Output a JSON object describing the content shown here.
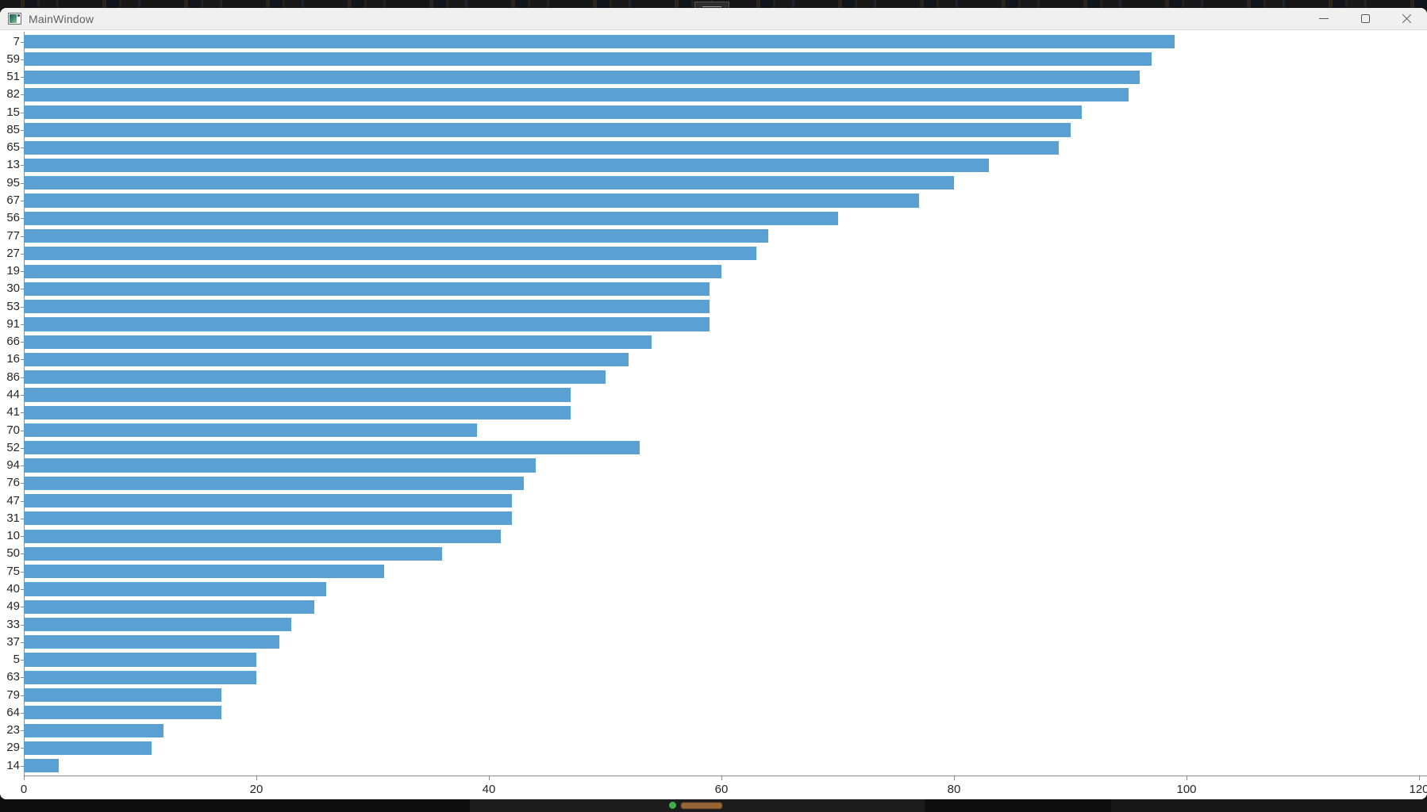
{
  "desktop": {
    "top_strip_color": "#161616",
    "taskbar": {
      "bg_color": "#0f0f0f",
      "segment_color": "#1c1c1c",
      "icon_green": "#3fae4a",
      "text_blob_orange": "#c07c3e"
    },
    "grip_handle": {
      "bg_color": "#2d2d2d",
      "line_color": "#9a9a9a"
    }
  },
  "window": {
    "title": "MainWindow",
    "titlebar_bg": "#f0f0f0",
    "title_color": "#5f5f5f",
    "controls": [
      "minimize",
      "maximize",
      "close"
    ]
  },
  "chart_data": {
    "type": "bar",
    "orientation": "horizontal",
    "title": "",
    "xlabel": "",
    "ylabel": "",
    "categories": [
      "7",
      "59",
      "51",
      "82",
      "15",
      "85",
      "65",
      "13",
      "95",
      "67",
      "56",
      "77",
      "27",
      "19",
      "30",
      "53",
      "91",
      "66",
      "16",
      "86",
      "44",
      "41",
      "70",
      "52",
      "94",
      "76",
      "47",
      "31",
      "10",
      "50",
      "75",
      "40",
      "49",
      "33",
      "37",
      "5",
      "63",
      "79",
      "64",
      "23",
      "29",
      "14"
    ],
    "values": [
      99,
      97,
      96,
      95,
      91,
      90,
      89,
      83,
      80,
      77,
      70,
      64,
      63,
      60,
      59,
      59,
      59,
      54,
      52,
      50,
      47,
      47,
      39,
      53,
      44,
      43,
      42,
      42,
      41,
      36,
      31,
      26,
      25,
      23,
      22,
      20,
      20,
      17,
      17,
      12,
      11,
      3
    ],
    "xlim": [
      0,
      120
    ],
    "x_ticks": [
      0,
      20,
      40,
      60,
      80,
      100,
      120
    ],
    "grid": false,
    "legend": null,
    "bar_color": "#5AA0D2",
    "axis_color": "#8a8a8a",
    "tick_label_color": "#262626",
    "background": "#ffffff"
  }
}
